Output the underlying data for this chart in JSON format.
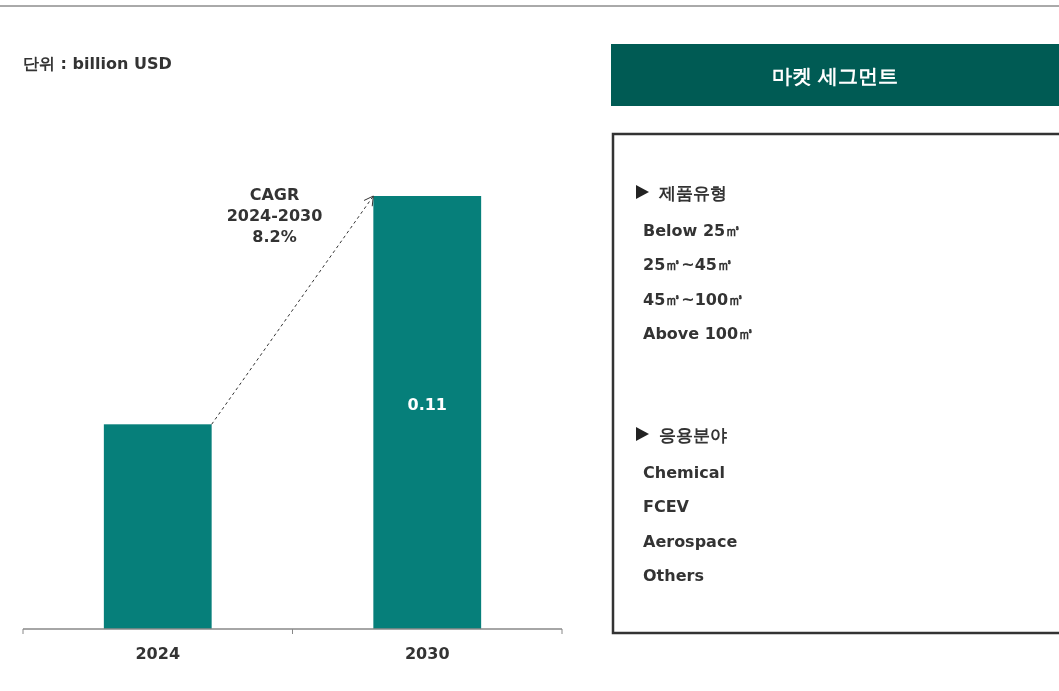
{
  "chart_data": [
    {
      "type": "bar",
      "subtitle": "단위 : billion USD",
      "categories": [
        "2024",
        "2030"
      ],
      "values": [
        0.052,
        0.11
      ],
      "color": "#067f7a",
      "value_labels": [
        null,
        "0.11"
      ],
      "annotations": [
        "CAGR 2024-2030 8.2%"
      ]
    },
    {
      "type": "other",
      "title": "마켓 세그먼트"
    },
    {
      "type": "other",
      "title": "제품유형",
      "annotations": [
        "Below 25㎥",
        "25㎥~45㎥",
        "45㎥~100㎥",
        "Above 100㎥"
      ]
    },
    {
      "type": "other",
      "title": "응용분야",
      "annotations": [
        "Chemical",
        "FCEV",
        "Aerospace",
        "Others"
      ]
    }
  ]
}
